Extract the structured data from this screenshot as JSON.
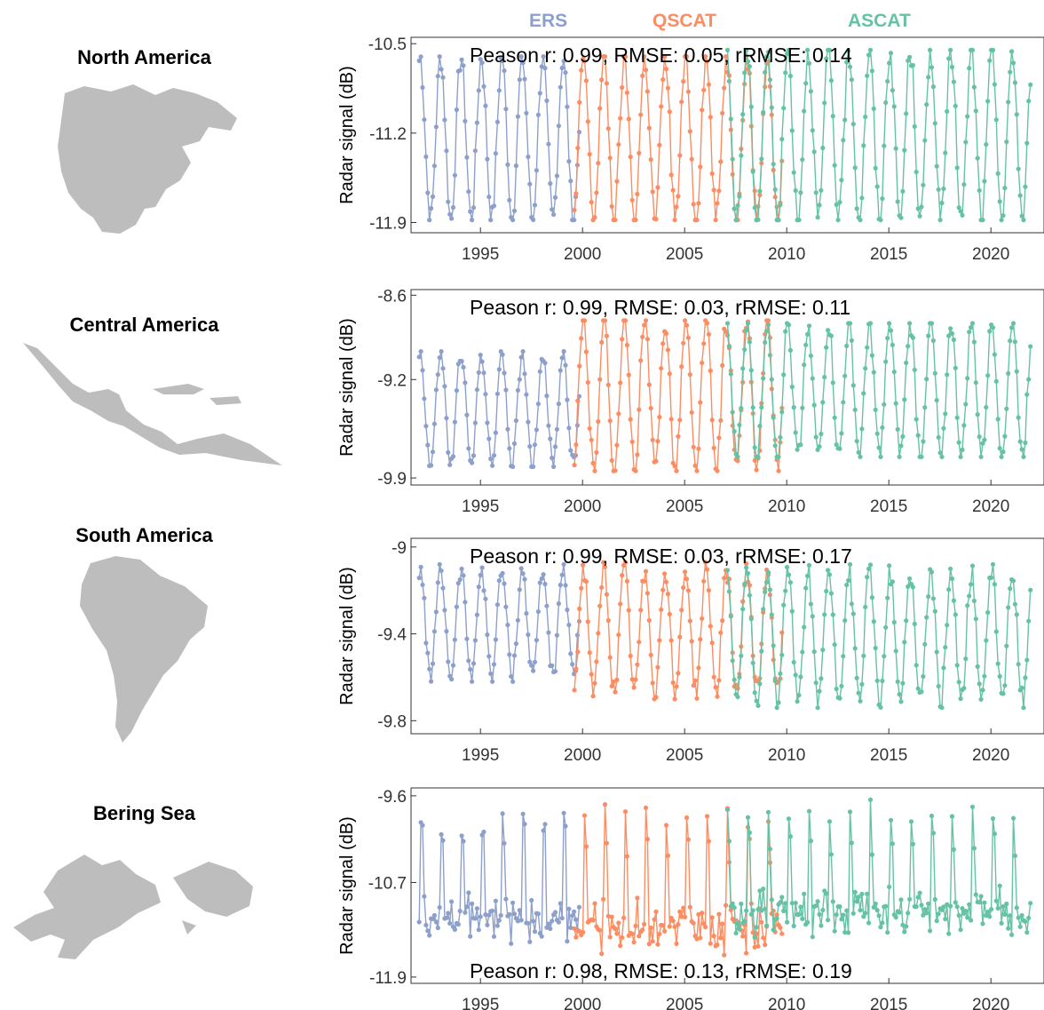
{
  "legend": [
    {
      "label": "ERS",
      "color": "#8da0cb"
    },
    {
      "label": "QSCAT",
      "color": "#fc8d62"
    },
    {
      "label": "ASCAT",
      "color": "#66c2a5"
    }
  ],
  "map_color": "#bdbdbd",
  "chart_data": [
    {
      "type": "line",
      "region": "North America",
      "ylabel": "Radar signal (dB)",
      "yticks": [
        "-10.5",
        "-11.2",
        "-11.9"
      ],
      "ylim": [
        -11.98,
        -10.45
      ],
      "xlim": [
        1991.6,
        2022.6
      ],
      "xticks": [
        "1995",
        "2000",
        "2005",
        "2010",
        "2015",
        "2020"
      ],
      "stats": "Peason r: 0.99, RMSE: 0.05, rRMSE: 0.14",
      "stats_position": "top",
      "series": [
        {
          "name": "ERS",
          "start": 1992.0,
          "end": 1999.9,
          "min": -11.88,
          "max": -10.6,
          "seasonal": "winter-high"
        },
        {
          "name": "QSCAT",
          "start": 1999.6,
          "end": 2009.8,
          "min": -11.88,
          "max": -10.6,
          "seasonal": "winter-high"
        },
        {
          "name": "ASCAT",
          "start": 2007.1,
          "end": 2022.0,
          "min": -11.88,
          "max": -10.55,
          "seasonal": "winter-high"
        }
      ]
    },
    {
      "type": "line",
      "region": "Central America",
      "ylabel": "Radar signal (dB)",
      "yticks": [
        "-8.6",
        "-9.2",
        "-9.9"
      ],
      "ylim": [
        -9.95,
        -8.56
      ],
      "xlim": [
        1991.6,
        2022.6
      ],
      "xticks": [
        "1995",
        "2000",
        "2005",
        "2010",
        "2015",
        "2020"
      ],
      "stats": "Peason r: 0.99, RMSE: 0.03, rRMSE: 0.11",
      "stats_position": "top",
      "series": [
        {
          "name": "ERS",
          "start": 1992.0,
          "end": 1999.9,
          "min": -9.82,
          "max": -9.0,
          "seasonal": "winter-high"
        },
        {
          "name": "QSCAT",
          "start": 1999.6,
          "end": 2009.8,
          "min": -9.85,
          "max": -8.78,
          "seasonal": "winter-high"
        },
        {
          "name": "ASCAT",
          "start": 2007.1,
          "end": 2022.0,
          "min": -9.75,
          "max": -8.8,
          "seasonal": "winter-high"
        }
      ]
    },
    {
      "type": "line",
      "region": "South America",
      "ylabel": "Radar signal (dB)",
      "yticks": [
        "-9",
        "-9.4",
        "-9.8"
      ],
      "ylim": [
        -9.86,
        -8.96
      ],
      "xlim": [
        1991.6,
        2022.6
      ],
      "xticks": [
        "1995",
        "2000",
        "2005",
        "2010",
        "2015",
        "2020"
      ],
      "stats": "Peason r: 0.99, RMSE: 0.03, rRMSE: 0.17",
      "stats_position": "top",
      "series": [
        {
          "name": "ERS",
          "start": 1992.0,
          "end": 1999.9,
          "min": -9.62,
          "max": -9.08,
          "seasonal": "summer-high"
        },
        {
          "name": "QSCAT",
          "start": 1999.6,
          "end": 2009.8,
          "min": -9.7,
          "max": -9.07,
          "seasonal": "summer-high"
        },
        {
          "name": "ASCAT",
          "start": 2007.1,
          "end": 2022.0,
          "min": -9.74,
          "max": -9.08,
          "seasonal": "summer-high"
        }
      ]
    },
    {
      "type": "line",
      "region": "Bering Sea",
      "ylabel": "Radar signal (dB)",
      "yticks": [
        "-9.6",
        "-10.7",
        "-11.9"
      ],
      "ylim": [
        -11.98,
        -9.5
      ],
      "xlim": [
        1991.6,
        2022.6
      ],
      "xticks": [
        "1995",
        "2000",
        "2005",
        "2010",
        "2015",
        "2020"
      ],
      "stats": "Peason r: 0.98, RMSE: 0.13, rRMSE: 0.19",
      "stats_position": "bottom",
      "series": [
        {
          "name": "ERS",
          "start": 1992.0,
          "end": 1999.9,
          "min": -11.65,
          "max": -9.6,
          "seasonal": "spiky"
        },
        {
          "name": "QSCAT",
          "start": 1999.6,
          "end": 2009.8,
          "min": -11.85,
          "max": -9.6,
          "seasonal": "spiky"
        },
        {
          "name": "ASCAT",
          "start": 2007.1,
          "end": 2022.0,
          "min": -11.55,
          "max": -9.6,
          "seasonal": "spiky"
        }
      ]
    }
  ]
}
